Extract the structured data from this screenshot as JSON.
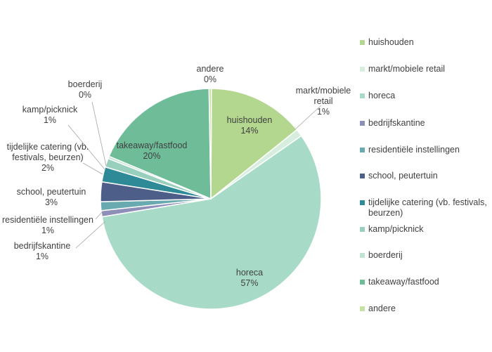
{
  "chart_data": {
    "type": "pie",
    "title": "",
    "slices": [
      {
        "label": "huishouden",
        "value": 14,
        "value_label": "14%",
        "color": "#b3d78e"
      },
      {
        "label": "markt/mobiele retail",
        "value": 1,
        "value_label": "1%",
        "color": "#d7eedf"
      },
      {
        "label": "horeca",
        "value": 57,
        "value_label": "57%",
        "color": "#a7dbc8"
      },
      {
        "label": "bedrijfskantine",
        "value": 1,
        "value_label": "1%",
        "color": "#8e8fb9"
      },
      {
        "label": "residentiële instellingen",
        "value": 1,
        "value_label": "1%",
        "color": "#68aab0"
      },
      {
        "label": "school, peutertuin",
        "value": 3,
        "value_label": "3%",
        "color": "#4d5e88"
      },
      {
        "label": "tijdelijke catering (vb. festivals, beurzen)",
        "value": 2,
        "value_label": "2%",
        "color": "#2e8a96"
      },
      {
        "label": "kamp/picknick",
        "value": 1,
        "value_label": "1%",
        "color": "#99cfbd"
      },
      {
        "label": "boerderij",
        "value": 0,
        "value_label": "0%",
        "color": "#c1e4d2"
      },
      {
        "label": "takeaway/fastfood",
        "value": 20,
        "value_label": "20%",
        "color": "#6fbc98"
      },
      {
        "label": "andere",
        "value": 0,
        "value_label": "0%",
        "color": "#c6e2a3"
      }
    ],
    "legend_position": "right"
  }
}
